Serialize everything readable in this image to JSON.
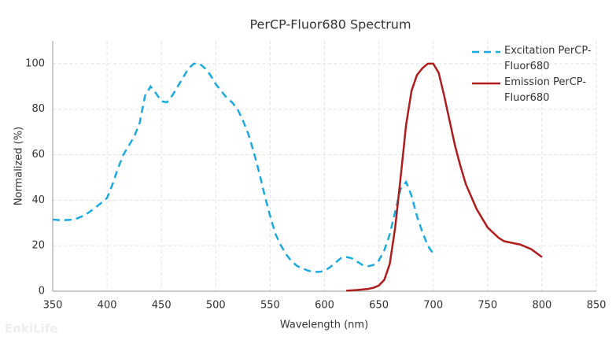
{
  "chart_data": {
    "type": "line",
    "title": "PerCP-Fluor680  Spectrum",
    "xlabel": "Wavelength (nm)",
    "ylabel": "Normalized (%)",
    "watermark": "EnkiLife",
    "xlim": [
      350,
      850
    ],
    "xticks": [
      350,
      400,
      450,
      500,
      550,
      600,
      650,
      700,
      750,
      800,
      850
    ],
    "ylim": [
      0,
      110
    ],
    "yticks": [
      0,
      20,
      40,
      60,
      80,
      100
    ],
    "grid": true,
    "series": [
      {
        "name": "Excitation PerCP-Fluor680",
        "color": "#1ba9e1",
        "dash": true,
        "x": [
          350,
          355,
          360,
          370,
          380,
          390,
          400,
          405,
          410,
          415,
          420,
          425,
          430,
          435,
          440,
          445,
          450,
          455,
          460,
          465,
          470,
          475,
          480,
          485,
          490,
          495,
          500,
          505,
          510,
          515,
          520,
          525,
          530,
          535,
          540,
          545,
          550,
          555,
          560,
          565,
          570,
          575,
          580,
          585,
          590,
          595,
          600,
          605,
          610,
          615,
          620,
          625,
          630,
          635,
          640,
          645,
          650,
          655,
          660,
          665,
          670,
          675,
          680,
          685,
          690,
          695,
          700
        ],
        "values": [
          31.5,
          31.3,
          31.2,
          31.5,
          33.5,
          37,
          41,
          47,
          54,
          60,
          64,
          68,
          74,
          86,
          90,
          87,
          83.5,
          83,
          86,
          90,
          94,
          98,
          100,
          100,
          98,
          95,
          91,
          88,
          85,
          83,
          80,
          75,
          69,
          61,
          52,
          42,
          33,
          25,
          20,
          16,
          13,
          11,
          10,
          9,
          8.5,
          8.5,
          9,
          10.5,
          12.5,
          14.5,
          15,
          14.5,
          13,
          11.5,
          11,
          11.5,
          13.5,
          18,
          25,
          35,
          45,
          48,
          42,
          33,
          26,
          20,
          16.5
        ]
      },
      {
        "name": "Emission PerCP-Fluor680",
        "color": "#b01c1c",
        "dash": false,
        "x": [
          620,
          630,
          640,
          645,
          650,
          655,
          660,
          665,
          670,
          675,
          680,
          685,
          690,
          695,
          700,
          705,
          710,
          715,
          720,
          725,
          730,
          740,
          750,
          760,
          765,
          770,
          780,
          790,
          800
        ],
        "values": [
          0.2,
          0.5,
          1,
          1.5,
          2.5,
          5,
          12,
          28,
          50,
          73,
          88,
          95,
          98,
          100,
          100,
          96,
          86,
          75,
          64,
          55,
          47,
          36,
          28,
          23.5,
          22,
          21.5,
          20.5,
          18.5,
          15
        ]
      }
    ]
  }
}
